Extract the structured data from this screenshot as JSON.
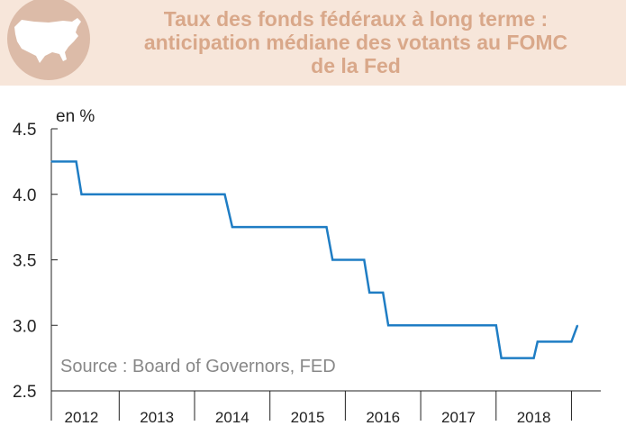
{
  "title_lines": [
    "Taux des fonds fédéraux à long terme :",
    "anticipation médiane des votants au FOMC",
    "de la Fed"
  ],
  "icon": "usa-map-icon",
  "colors": {
    "background": "#f7e6da",
    "title": "#d9a88a",
    "line": "#1f7dc4",
    "axis": "#222222",
    "source": "#888888"
  },
  "chart_data": {
    "type": "line",
    "ylabel": "en %",
    "ylim": [
      2.5,
      4.5
    ],
    "yticks": [
      "4.5",
      "4.0",
      "3.5",
      "3.0",
      "2.5"
    ],
    "xlim": [
      2011.6,
      2018.65
    ],
    "year_boundaries": [
      2011.6,
      2012.5,
      2013.5,
      2014.5,
      2015.5,
      2016.5,
      2017.5,
      2018.5
    ],
    "xticks": [
      {
        "label": "2012",
        "x": 2012.0
      },
      {
        "label": "2013",
        "x": 2013.0
      },
      {
        "label": "2014",
        "x": 2014.0
      },
      {
        "label": "2015",
        "x": 2015.0
      },
      {
        "label": "2016",
        "x": 2016.0
      },
      {
        "label": "2017",
        "x": 2017.0
      },
      {
        "label": "2018",
        "x": 2018.0
      }
    ],
    "series": [
      {
        "x": [
          2011.6,
          2011.93,
          2012.0,
          2013.9,
          2014.0,
          2015.25,
          2015.33,
          2015.75,
          2015.82,
          2016.0,
          2016.07,
          2017.5,
          2017.57,
          2018.0,
          2018.05,
          2018.5,
          2018.58
        ],
        "y": [
          4.25,
          4.25,
          4.0,
          4.0,
          3.75,
          3.75,
          3.5,
          3.5,
          3.25,
          3.25,
          3.0,
          3.0,
          2.75,
          2.75,
          2.875,
          2.875,
          3.0
        ]
      }
    ],
    "source": "Source : Board of Governors, FED",
    "grid": false
  }
}
